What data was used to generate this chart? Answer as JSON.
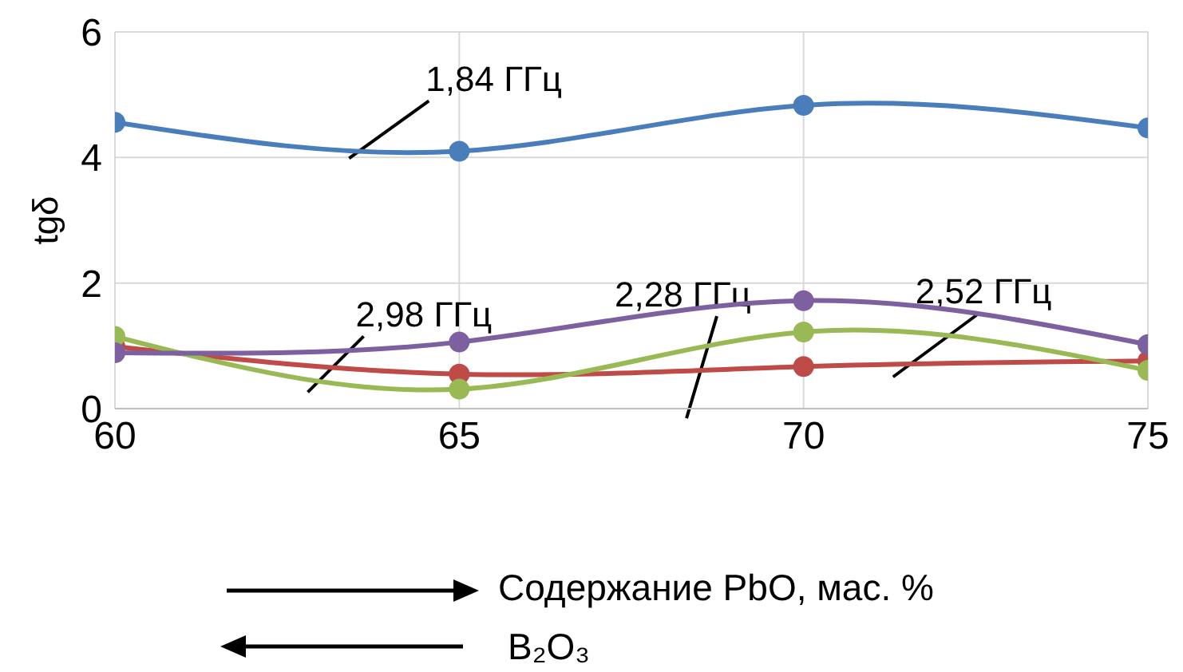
{
  "chart_data": {
    "type": "line",
    "ylabel": "tgδ",
    "xlabel": "Содержание PbO, мас. %",
    "x": [
      60,
      65,
      70,
      75
    ],
    "series": [
      {
        "color": "#4a7ebb",
        "values": [
          4.56,
          4.1,
          4.83,
          4.47
        ]
      },
      {
        "color": "#be4b48",
        "values": [
          0.99,
          0.55,
          0.67,
          0.76
        ]
      },
      {
        "color": "#98b954",
        "values": [
          1.15,
          0.31,
          1.22,
          0.61
        ]
      },
      {
        "color": "#7d60a0",
        "values": [
          0.89,
          1.06,
          1.72,
          1.02
        ]
      }
    ],
    "xlim": [
      60,
      75
    ],
    "xticks": [
      60,
      65,
      70,
      75
    ],
    "ylim": [
      0,
      6
    ],
    "yticks": [
      0,
      2,
      4,
      6
    ],
    "grid": true,
    "legend": false,
    "marker": "circle",
    "line_style": "solid",
    "annotations": [
      {
        "text": "1,84 ГГц",
        "x": 63.4,
        "y": 4.26
      },
      {
        "text": "2,98 ГГц",
        "x": 62.8,
        "y": 1.04
      },
      {
        "text": "2,28 ГГц",
        "x": 68.3,
        "y": 0.68
      },
      {
        "text": "2,52 ГГц",
        "x": 71.3,
        "y": 1.25
      },
      "B₂O₃"
    ]
  }
}
